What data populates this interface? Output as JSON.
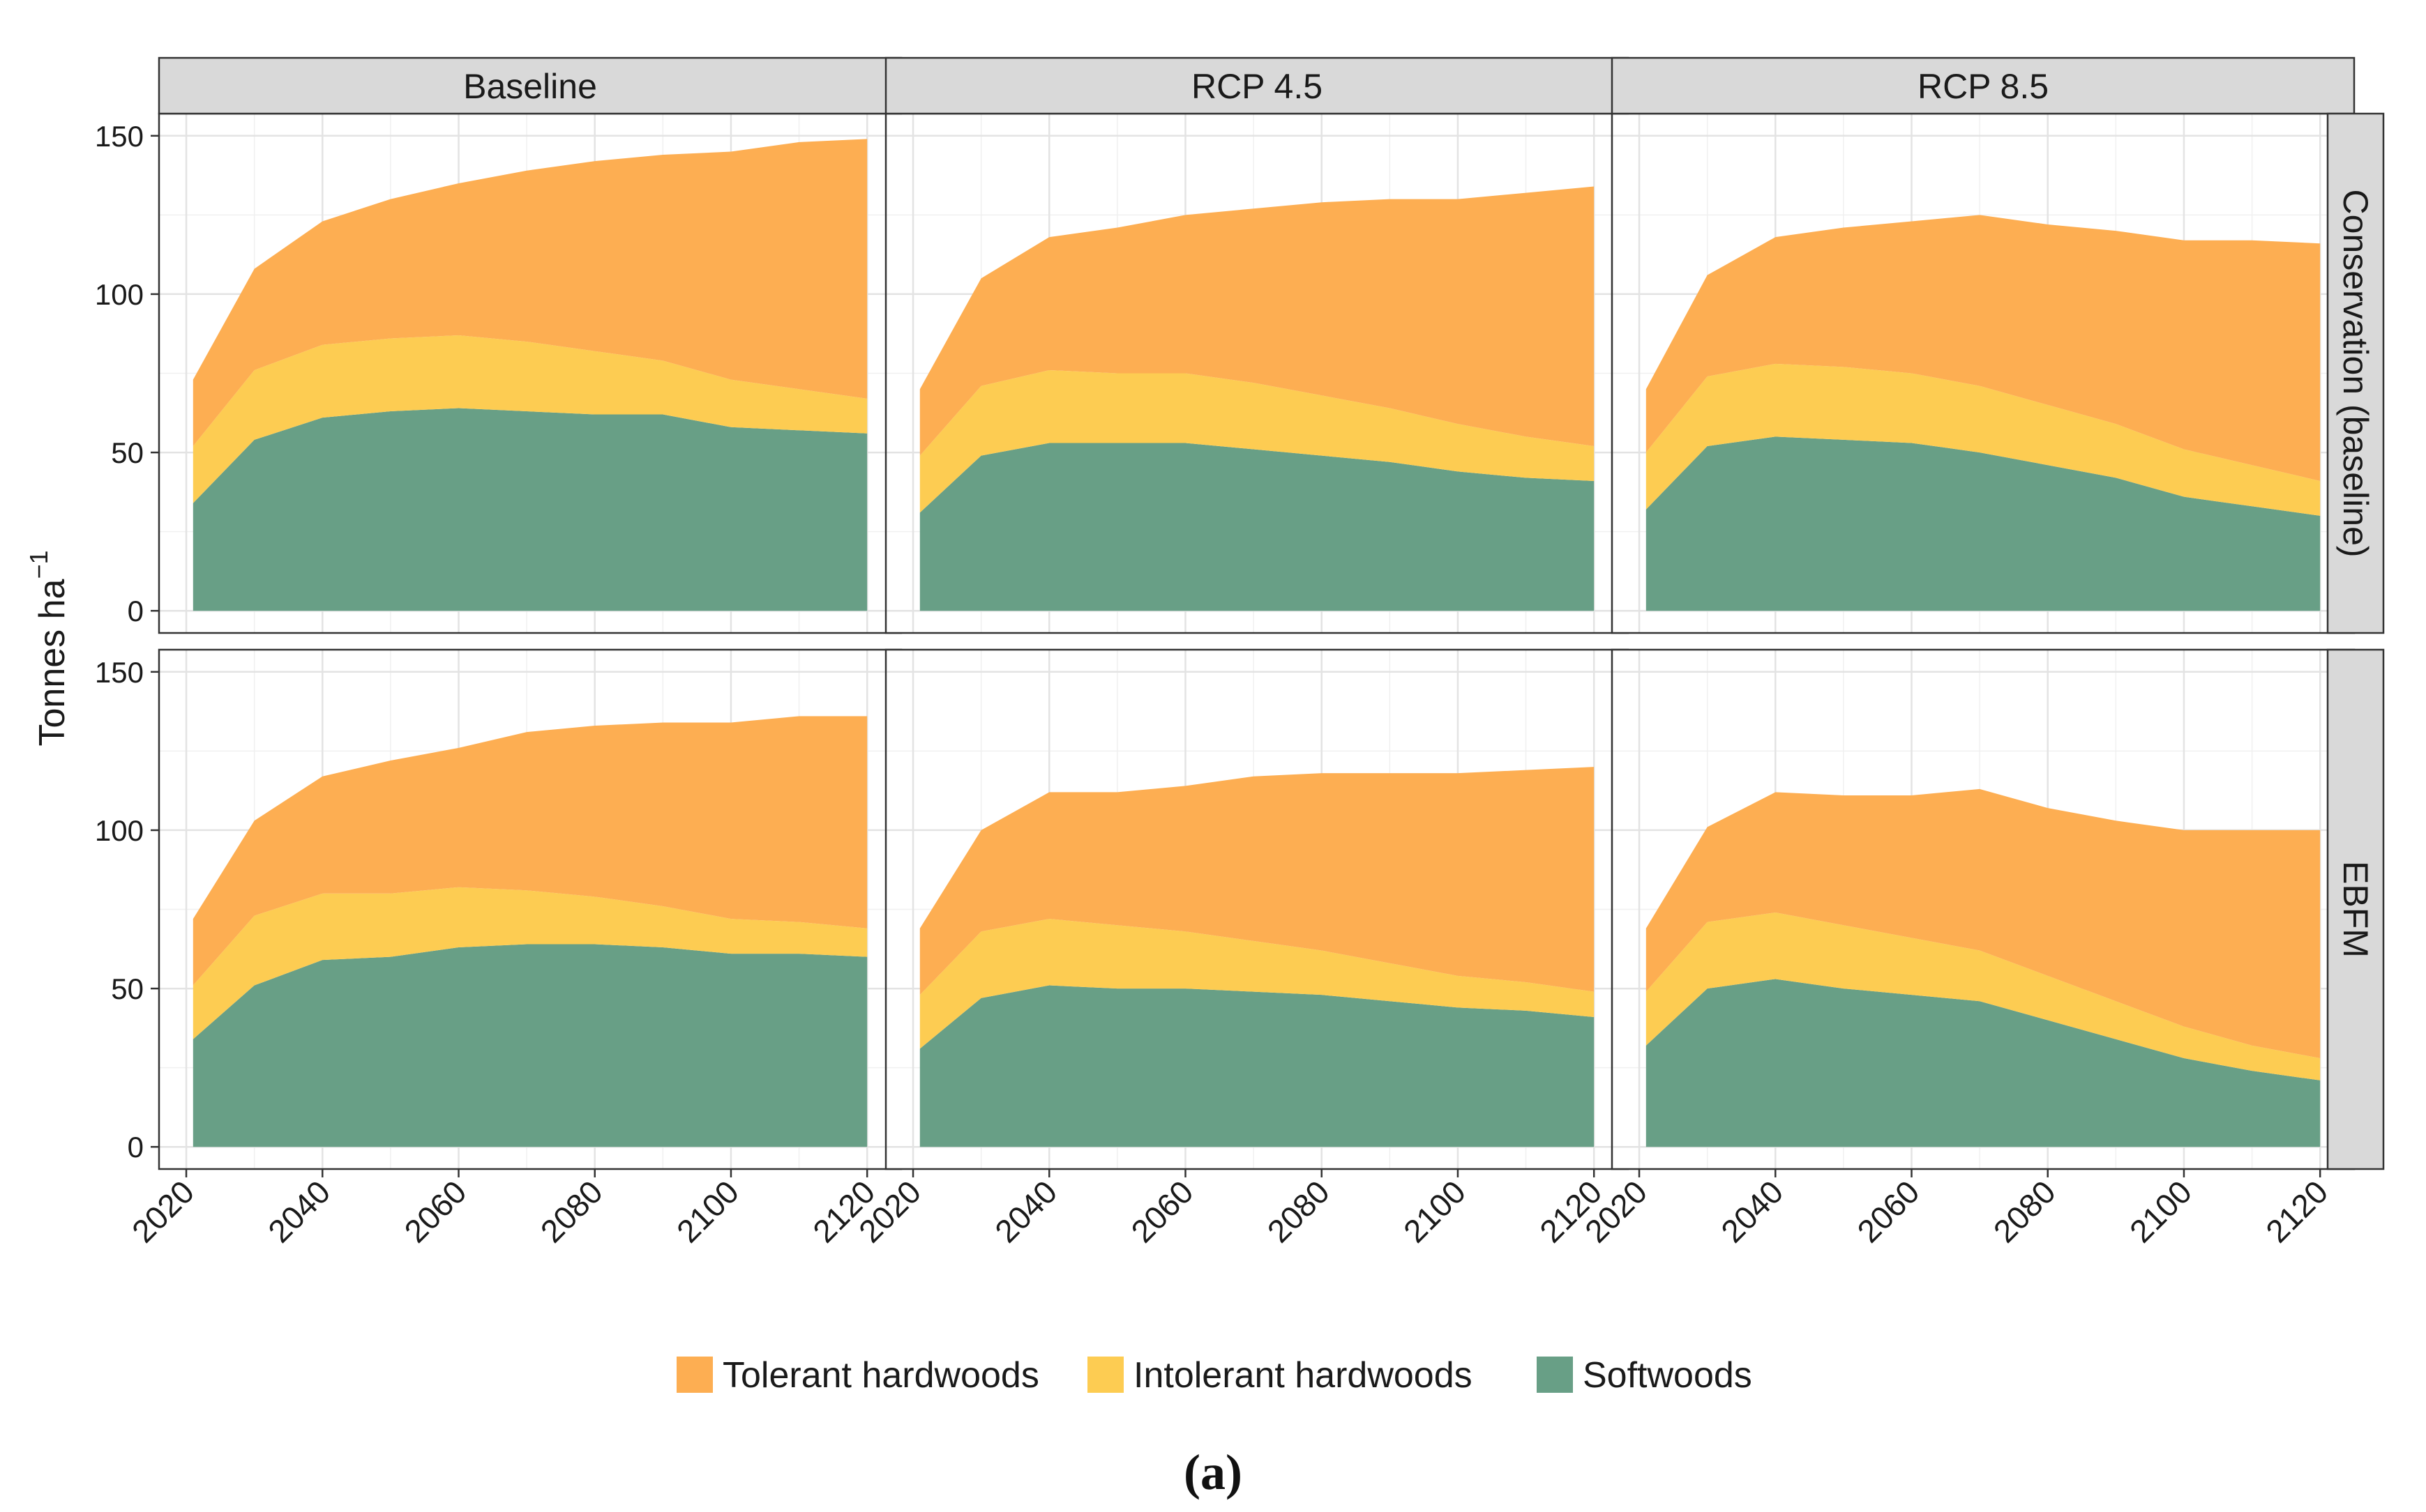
{
  "chart_data": {
    "type": "area",
    "stacked": true,
    "ylabel": "Tonnes ha",
    "ylabel_superscript": "−1",
    "caption": "(a)",
    "x": [
      2021,
      2030,
      2040,
      2050,
      2060,
      2070,
      2080,
      2090,
      2100,
      2110,
      2120
    ],
    "x_ticks": [
      "2020",
      "2040",
      "2060",
      "2080",
      "2100",
      "2120"
    ],
    "y_ticks": [
      "0",
      "50",
      "100",
      "150"
    ],
    "xlim": [
      2016,
      2125
    ],
    "ylim": [
      -7,
      157
    ],
    "columns": [
      "Baseline",
      "RCP 4.5",
      "RCP 8.5"
    ],
    "rows": [
      "Conservation (baseline)",
      "EBFM"
    ],
    "legend": [
      {
        "name": "Tolerant hardwoods",
        "color": "#fdae52"
      },
      {
        "name": "Intolerant hardwoods",
        "color": "#fdcc52"
      },
      {
        "name": "Softwoods",
        "color": "#689f86"
      }
    ],
    "panels": [
      {
        "row": "Conservation (baseline)",
        "column": "Baseline",
        "series": [
          {
            "name": "Softwoods",
            "values": [
              34,
              54,
              61,
              63,
              64,
              63,
              62,
              62,
              58,
              57,
              56
            ]
          },
          {
            "name": "Intolerant hardwoods",
            "values": [
              18,
              22,
              23,
              23,
              23,
              22,
              20,
              17,
              15,
              13,
              11
            ]
          },
          {
            "name": "Tolerant hardwoods",
            "values": [
              21,
              32,
              39,
              44,
              48,
              54,
              60,
              65,
              72,
              78,
              82
            ]
          }
        ]
      },
      {
        "row": "Conservation (baseline)",
        "column": "RCP 4.5",
        "series": [
          {
            "name": "Softwoods",
            "values": [
              31,
              49,
              53,
              53,
              53,
              51,
              49,
              47,
              44,
              42,
              41
            ]
          },
          {
            "name": "Intolerant hardwoods",
            "values": [
              18,
              22,
              23,
              22,
              22,
              21,
              19,
              17,
              15,
              13,
              11
            ]
          },
          {
            "name": "Tolerant hardwoods",
            "values": [
              21,
              34,
              42,
              46,
              50,
              55,
              61,
              66,
              71,
              77,
              82
            ]
          }
        ]
      },
      {
        "row": "Conservation (baseline)",
        "column": "RCP 8.5",
        "series": [
          {
            "name": "Softwoods",
            "values": [
              32,
              52,
              55,
              54,
              53,
              50,
              46,
              42,
              36,
              33,
              30
            ]
          },
          {
            "name": "Intolerant hardwoods",
            "values": [
              18,
              22,
              23,
              23,
              22,
              21,
              19,
              17,
              15,
              13,
              11
            ]
          },
          {
            "name": "Tolerant hardwoods",
            "values": [
              20,
              32,
              40,
              44,
              48,
              54,
              57,
              61,
              66,
              71,
              75
            ]
          }
        ]
      },
      {
        "row": "EBFM",
        "column": "Baseline",
        "series": [
          {
            "name": "Softwoods",
            "values": [
              34,
              51,
              59,
              60,
              63,
              64,
              64,
              63,
              61,
              61,
              60
            ]
          },
          {
            "name": "Intolerant hardwoods",
            "values": [
              17,
              22,
              21,
              20,
              19,
              17,
              15,
              13,
              11,
              10,
              9
            ]
          },
          {
            "name": "Tolerant hardwoods",
            "values": [
              21,
              30,
              37,
              42,
              44,
              50,
              54,
              58,
              62,
              65,
              67
            ]
          }
        ]
      },
      {
        "row": "EBFM",
        "column": "RCP 4.5",
        "series": [
          {
            "name": "Softwoods",
            "values": [
              31,
              47,
              51,
              50,
              50,
              49,
              48,
              46,
              44,
              43,
              41
            ]
          },
          {
            "name": "Intolerant hardwoods",
            "values": [
              17,
              21,
              21,
              20,
              18,
              16,
              14,
              12,
              10,
              9,
              8
            ]
          },
          {
            "name": "Tolerant hardwoods",
            "values": [
              21,
              32,
              40,
              42,
              46,
              52,
              56,
              60,
              64,
              67,
              71
            ]
          }
        ]
      },
      {
        "row": "EBFM",
        "column": "RCP 8.5",
        "series": [
          {
            "name": "Softwoods",
            "values": [
              32,
              50,
              53,
              50,
              48,
              46,
              40,
              34,
              28,
              24,
              21
            ]
          },
          {
            "name": "Intolerant hardwoods",
            "values": [
              17,
              21,
              21,
              20,
              18,
              16,
              14,
              12,
              10,
              8,
              7
            ]
          },
          {
            "name": "Tolerant hardwoods",
            "values": [
              20,
              30,
              38,
              41,
              45,
              51,
              53,
              57,
              62,
              68,
              72
            ]
          }
        ]
      }
    ]
  }
}
